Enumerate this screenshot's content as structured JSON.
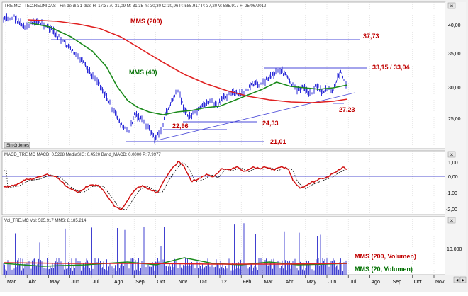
{
  "header": {
    "title": "TRE.MC - TEC.REUNIDAS - Fin de día 1 días H: 17:37 A: 31,09 M: 31,35 m: 30,30 C: 30,96 P: 585.917 P: 37,20 V: 585.917 F: 25/06/2012"
  },
  "indicators": {
    "macd_title": "MACD_TRE.MC MACD: 0,5288 MediaSIG: 0,4520 Band_MACD: 0,0000 P: 7,9977",
    "vol_title": "Vol_TRE.MC Vol: 585.917 MMS: 8.185.214"
  },
  "annotations": {
    "mms200": "MMS (200)",
    "mms40": "MMS (40)",
    "r3773": "37,73",
    "r3315": "33,15 / 33,04",
    "s2723": "27,23",
    "s2433": "24,33",
    "s2296": "22,96",
    "s2101": "21,01",
    "vol200": "MMS (200, Volumen)",
    "vol20": "MMS (20, Volumen)"
  },
  "buttons": {
    "orders": "Sin órdenes"
  },
  "axes": {
    "price": [
      "40,00",
      "35,00",
      "30,00",
      "25,00"
    ],
    "macd": [
      "1,00",
      "0,00",
      "-1,00",
      "-2,00"
    ],
    "vol": [
      "10.000"
    ],
    "months": [
      "Mar",
      "Abr",
      "May",
      "Jun",
      "Jul",
      "Ago",
      "Sep",
      "Oct",
      "Nov",
      "Dic",
      "12",
      "Feb",
      "Mar",
      "Abr",
      "May",
      "Jun",
      "Jul",
      "Ago",
      "Sep",
      "Oct",
      "Nov"
    ]
  },
  "colors": {
    "price": "#2c2cd8",
    "mms200": "#e02020",
    "mms40": "#1a8a1a",
    "macd": "#d01010",
    "signal": "#000000",
    "trend": "#5050d0"
  }
}
